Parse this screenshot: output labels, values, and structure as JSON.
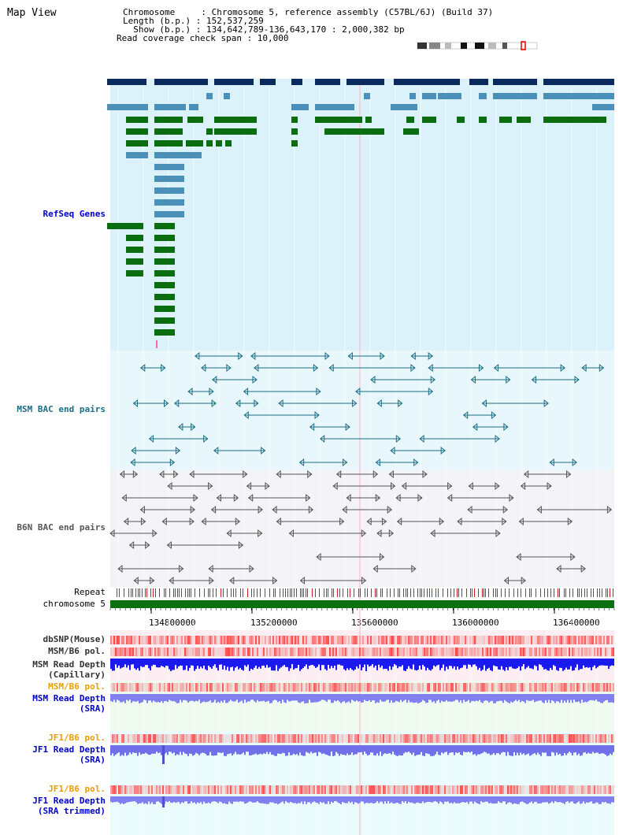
{
  "page": {
    "title": "Map View",
    "info": {
      "chromosome_line": "Chromosome     : Chromosome 5, reference assembly (C57BL/6J) (Build 37)",
      "length_line": "Length (b.p.) : 152,537,259",
      "show_line": "  Show (b.p.) : 134,642,789-136,643,170 : 2,000,382 bp",
      "coverage_line": "Read coverage check span : 10,000"
    }
  },
  "tracks": {
    "refseq": "RefSeq Genes",
    "msm_bac": "MSM BAC end pairs",
    "b6n_bac": "B6N BAC end pairs",
    "repeat": "Repeat",
    "chromosome": "chromosome 5",
    "dbsnp": "dbSNP(Mouse)",
    "msm_b6_pol_1": "MSM/B6 pol.",
    "msm_depth_cap_1": "MSM Read Depth",
    "msm_depth_cap_2": "(Capillary)",
    "msm_b6_pol_2": "MSM/B6 pol.",
    "msm_depth_sra_1": "MSM Read Depth",
    "msm_depth_sra_2": "(SRA)",
    "jf1_pol_1": "JF1/B6 pol.",
    "jf1_depth_sra_1": "JF1 Read Depth",
    "jf1_depth_sra_2": "(SRA)",
    "jf1_pol_2": "JF1/B6 pol.",
    "jf1_depth_trim_1": "JF1 Read Depth",
    "jf1_depth_trim_2": "(SRA trimmed)"
  },
  "axis": {
    "ticks": [
      "134800000",
      "135200000",
      "135600000",
      "136000000",
      "136400000"
    ]
  },
  "colors": {
    "refseq_bg": "#dcf2fa",
    "gene_dark": "#0a2a5e",
    "gene_mid": "#4a90b8",
    "gene_green": "#0a6e10",
    "bac_teal": "#1a6e85",
    "bac_gray": "#555555",
    "chrom_green": "#0a7010"
  }
}
